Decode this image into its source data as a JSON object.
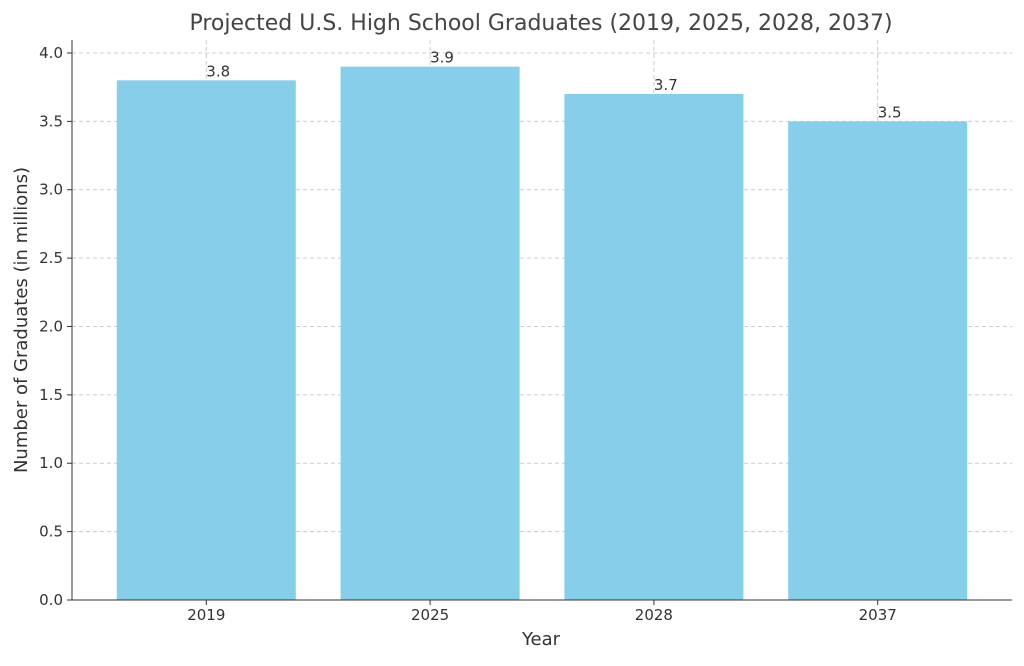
{
  "chart_data": {
    "type": "bar",
    "title": "Projected U.S. High School Graduates (2019, 2025, 2028, 2037)",
    "x_label": "Year",
    "y_label": "Number of Graduates (in millions)",
    "categories": [
      "2019",
      "2025",
      "2028",
      "2037"
    ],
    "values": [
      3.8,
      3.9,
      3.7,
      3.5
    ],
    "color": "#87ceeb",
    "ylim": [
      0,
      4.095
    ],
    "yticks": [
      {
        "value": 0,
        "label": "0.0"
      },
      {
        "value": 0.5,
        "label": "0.5"
      },
      {
        "value": 1,
        "label": "1.0"
      },
      {
        "value": 1.5,
        "label": "1.5"
      },
      {
        "value": 2,
        "label": "2.0"
      },
      {
        "value": 2.5,
        "label": "2.5"
      },
      {
        "value": 3,
        "label": "3.0"
      },
      {
        "value": 3.5,
        "label": "3.5"
      },
      {
        "value": 4,
        "label": "4.0"
      }
    ],
    "grid": true
  }
}
